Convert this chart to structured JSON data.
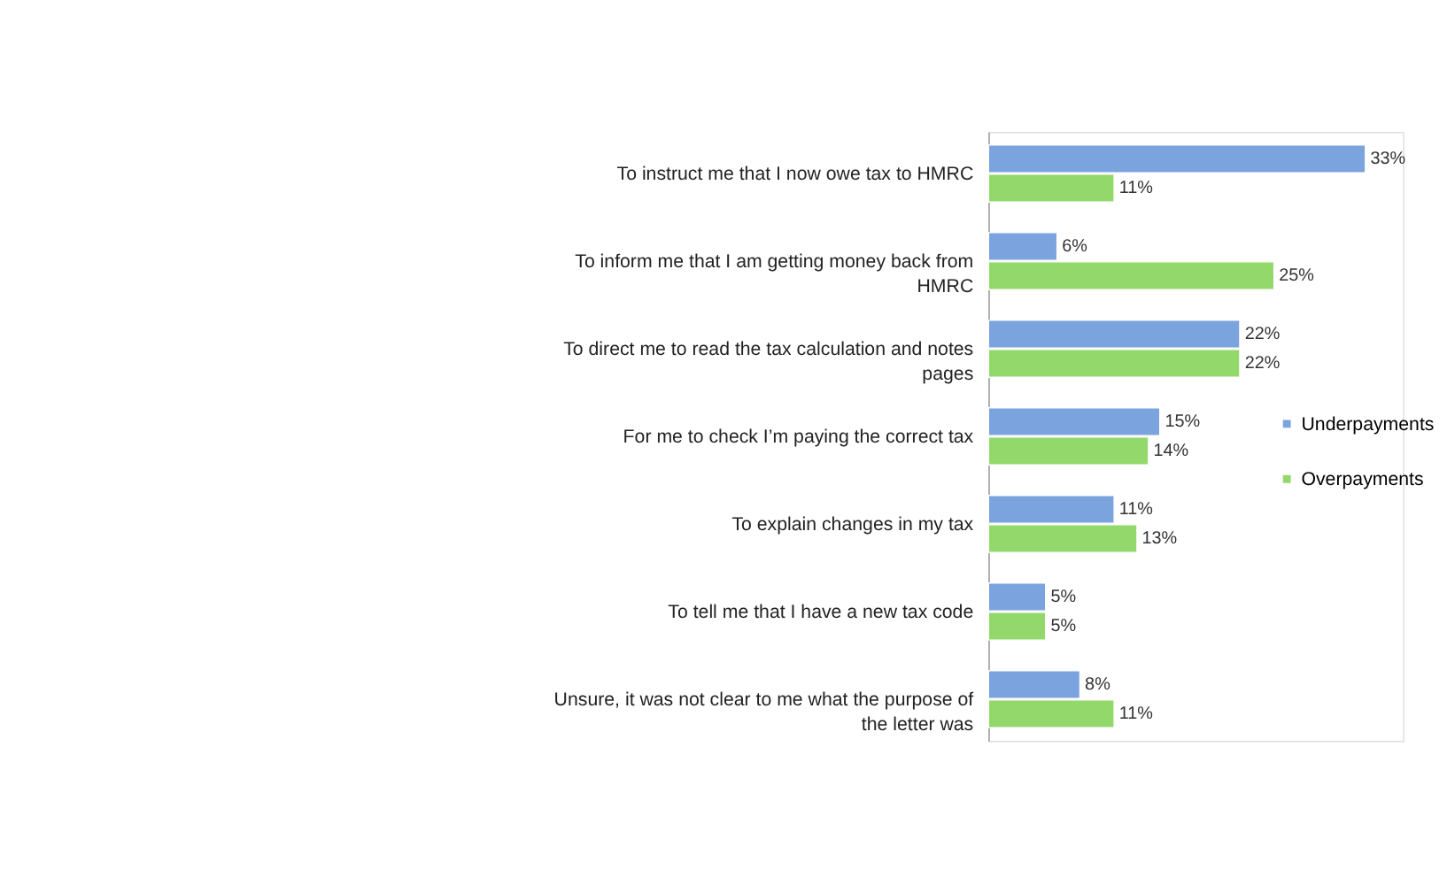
{
  "chart_data": {
    "type": "bar",
    "orientation": "horizontal",
    "legend": "right",
    "categories": [
      "To instruct me that I now owe tax to HMRC",
      "To inform me that I am getting money back from HMRC",
      "To direct me to read the tax calculation and notes pages",
      "For me to check I’m paying the correct tax",
      "To explain changes in my tax",
      "To tell me that I have a new tax code",
      "Unsure, it was not clear to me what the purpose of the letter was"
    ],
    "series": [
      {
        "name": "Underpayments",
        "color": "#7ba3dd",
        "values": [
          33,
          6,
          22,
          15,
          11,
          5,
          8
        ],
        "value_labels": [
          "33%",
          "6%",
          "22%",
          "15%",
          "11%",
          "5%",
          "8%"
        ]
      },
      {
        "name": "Overpayments",
        "color": "#92d86a",
        "values": [
          11,
          25,
          22,
          14,
          13,
          5,
          11
        ],
        "value_labels": [
          "11%",
          "25%",
          "22%",
          "14%",
          "13%",
          "5%",
          "11%"
        ]
      }
    ]
  }
}
